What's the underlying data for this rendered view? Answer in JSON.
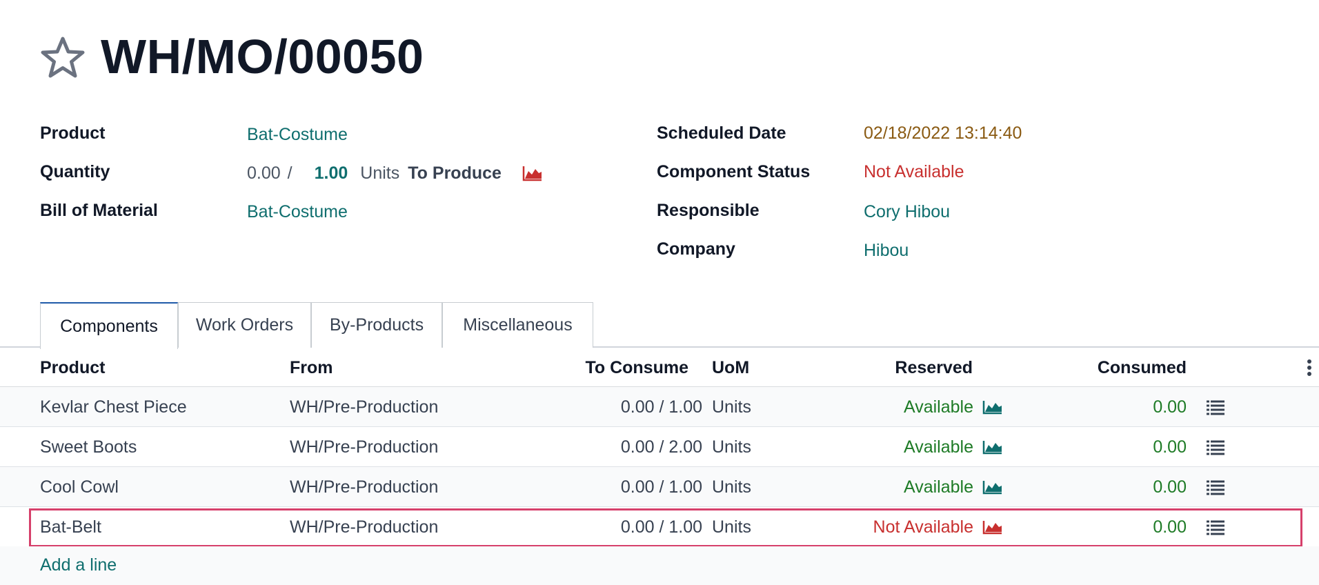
{
  "record": {
    "title": "WH/MO/00050"
  },
  "fields": {
    "product": {
      "label": "Product",
      "value": "Bat-Costume"
    },
    "quantity": {
      "label": "Quantity",
      "produced": "0.00",
      "separator": "/",
      "target": "1.00",
      "uom": "Units",
      "suffix": "To Produce"
    },
    "bom": {
      "label": "Bill of Material",
      "value": "Bat-Costume"
    },
    "scheduled_date": {
      "label": "Scheduled Date",
      "value": "02/18/2022 13:14:40"
    },
    "component_status": {
      "label": "Component Status",
      "value": "Not Available"
    },
    "responsible": {
      "label": "Responsible",
      "value": "Cory Hibou"
    },
    "company": {
      "label": "Company",
      "value": "Hibou"
    }
  },
  "tabs": [
    {
      "label": "Components",
      "active": true
    },
    {
      "label": "Work Orders",
      "active": false
    },
    {
      "label": "By-Products",
      "active": false
    },
    {
      "label": "Miscellaneous",
      "active": false
    }
  ],
  "table": {
    "headers": {
      "product": "Product",
      "from": "From",
      "to_consume": "To Consume",
      "uom": "UoM",
      "reserved": "Reserved",
      "consumed": "Consumed"
    },
    "rows": [
      {
        "product": "Kevlar Chest Piece",
        "from": "WH/Pre-Production",
        "to_consume": "0.00 / 1.00",
        "uom": "Units",
        "reserved": "Available",
        "consumed": "0.00"
      },
      {
        "product": "Sweet Boots",
        "from": "WH/Pre-Production",
        "to_consume": "0.00 / 2.00",
        "uom": "Units",
        "reserved": "Available",
        "consumed": "0.00"
      },
      {
        "product": "Cool Cowl",
        "from": "WH/Pre-Production",
        "to_consume": "0.00 / 1.00",
        "uom": "Units",
        "reserved": "Available",
        "consumed": "0.00"
      },
      {
        "product": "Bat-Belt",
        "from": "WH/Pre-Production",
        "to_consume": "0.00 / 1.00",
        "uom": "Units",
        "reserved": "Not Available",
        "consumed": "0.00"
      }
    ],
    "add_line": "Add a line"
  },
  "colors": {
    "link": "#0f6e6e",
    "available": "#1e7b26",
    "not_available": "#c8302f",
    "date_warning": "#8a5a12",
    "highlight_border": "#d6406b"
  },
  "icons": {
    "favorite": "star-outline-icon",
    "forecast": "area-chart-icon",
    "detail": "list-icon",
    "optional_columns": "kebab-menu-icon"
  }
}
